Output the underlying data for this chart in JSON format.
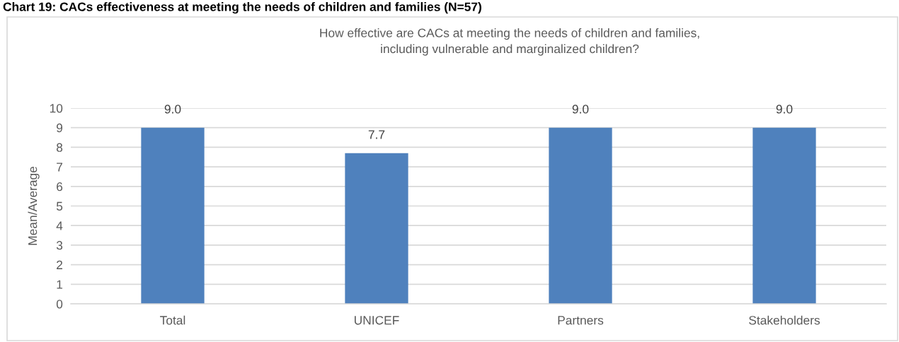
{
  "chart_data": {
    "type": "bar",
    "title": "Chart 19: CACs effectiveness at meeting the needs of children and families (N=57)",
    "subtitle": "How effective are CACs at meeting the needs of children and families,\nincluding vulnerable and marginalized children?",
    "ylabel": "Mean/Average",
    "categories": [
      "Total",
      "UNICEF",
      "Partners",
      "Stakeholders"
    ],
    "values": [
      9.0,
      7.7,
      9.0,
      9.0
    ],
    "value_labels": [
      "9.0",
      "7.7",
      "9.0",
      "9.0"
    ],
    "color": "#4f81bd",
    "ylim": [
      0,
      10
    ],
    "yticks": [
      0,
      1,
      2,
      3,
      4,
      5,
      6,
      7,
      8,
      9,
      10
    ],
    "grid": "y",
    "legend": false
  }
}
